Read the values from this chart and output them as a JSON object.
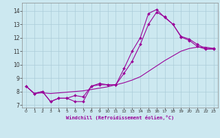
{
  "xlabel": "Windchill (Refroidissement éolien,°C)",
  "background_color": "#cce8f0",
  "grid_color": "#aaccd8",
  "line_color": "#990099",
  "xlim": [
    -0.5,
    23.5
  ],
  "ylim": [
    6.8,
    14.6
  ],
  "xticks": [
    0,
    1,
    2,
    3,
    4,
    5,
    6,
    7,
    8,
    9,
    10,
    11,
    12,
    13,
    14,
    15,
    16,
    17,
    18,
    19,
    20,
    21,
    22,
    23
  ],
  "yticks": [
    7,
    8,
    9,
    10,
    11,
    12,
    13,
    14
  ],
  "curve1_x": [
    0,
    1,
    2,
    3,
    4,
    5,
    6,
    7,
    8,
    9,
    10,
    11,
    12,
    13,
    14,
    15,
    16,
    17,
    18,
    19,
    20,
    21,
    22,
    23
  ],
  "curve1_y": [
    8.4,
    7.85,
    8.0,
    7.25,
    7.5,
    7.5,
    7.25,
    7.25,
    8.4,
    8.6,
    8.5,
    8.5,
    9.7,
    11.0,
    12.0,
    13.8,
    14.1,
    13.5,
    13.0,
    12.1,
    11.9,
    11.5,
    11.2,
    11.2
  ],
  "curve2_x": [
    0,
    1,
    2,
    3,
    4,
    5,
    6,
    7,
    8,
    9,
    10,
    11,
    12,
    13,
    14,
    15,
    16,
    17,
    18,
    19,
    20,
    21,
    22,
    23
  ],
  "curve2_y": [
    8.4,
    7.85,
    8.0,
    7.25,
    7.5,
    7.5,
    7.7,
    7.6,
    8.4,
    8.5,
    8.5,
    8.5,
    9.35,
    10.25,
    11.5,
    13.0,
    13.9,
    13.55,
    13.0,
    12.05,
    11.8,
    11.35,
    11.15,
    11.15
  ],
  "curve3_x": [
    0,
    1,
    2,
    3,
    4,
    5,
    6,
    7,
    8,
    9,
    10,
    11,
    12,
    13,
    14,
    15,
    16,
    17,
    18,
    19,
    20,
    21,
    22,
    23
  ],
  "curve3_y": [
    8.4,
    7.85,
    7.9,
    7.85,
    7.9,
    7.95,
    8.0,
    8.05,
    8.15,
    8.25,
    8.35,
    8.5,
    8.65,
    8.85,
    9.1,
    9.5,
    9.9,
    10.3,
    10.65,
    11.0,
    11.2,
    11.3,
    11.3,
    11.2
  ]
}
